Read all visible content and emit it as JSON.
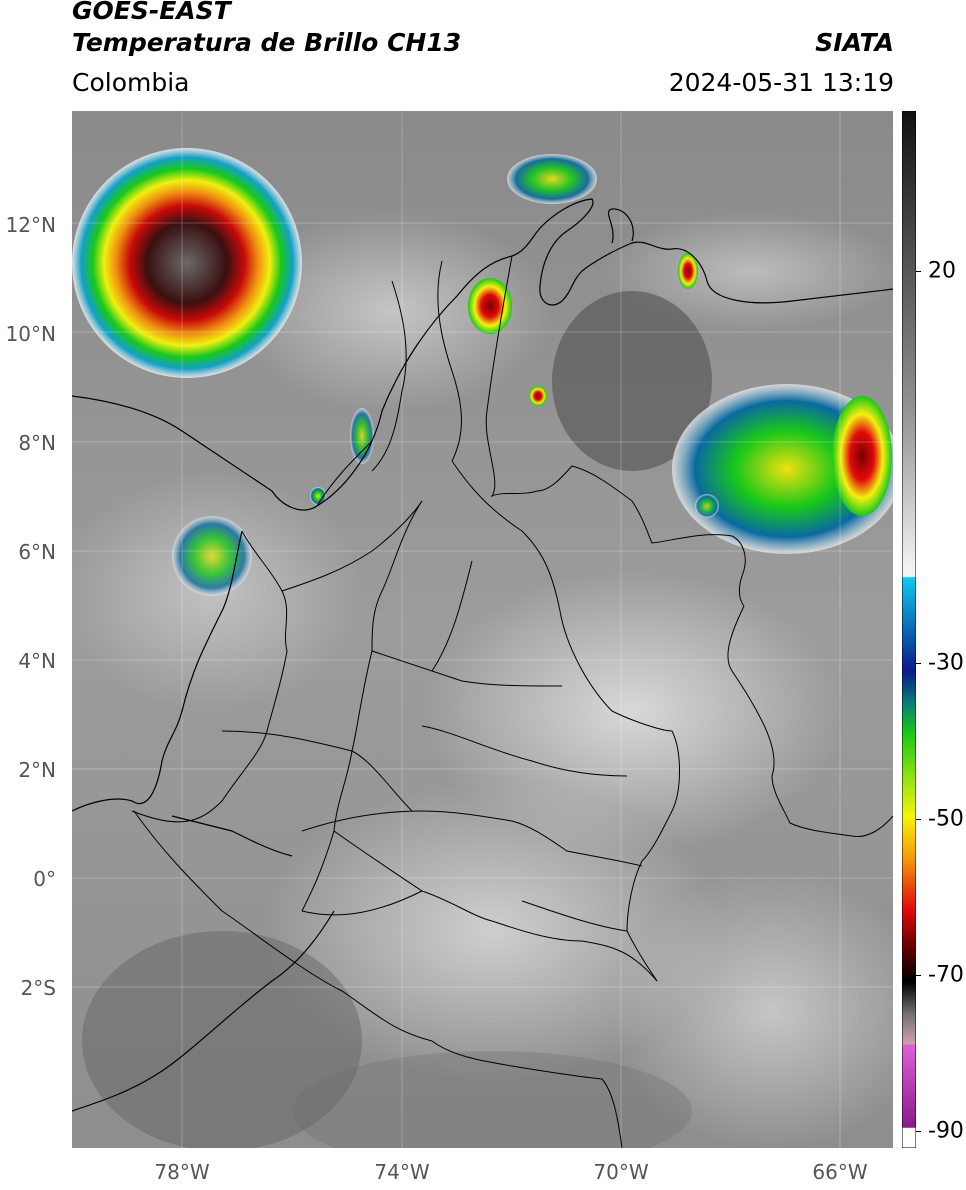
{
  "header": {
    "title_line1": "GOES-EAST",
    "title_line2": "Temperatura de Brillo CH13",
    "organization": "SIATA",
    "region": "Colombia",
    "timestamp": "2024-05-31 13:19"
  },
  "map": {
    "lat_labels": [
      "12°N",
      "10°N",
      "8°N",
      "6°N",
      "4°N",
      "2°N",
      "0°",
      "2°S"
    ],
    "lon_labels": [
      "78°W",
      "74°W",
      "70°W",
      "66°W"
    ],
    "extent": {
      "lon_min": -80,
      "lon_max": -65,
      "lat_min": -5,
      "lat_max": 14
    }
  },
  "colorbar": {
    "tick_labels": [
      "20",
      "-30",
      "-50",
      "-70",
      "-90"
    ],
    "range": [
      -92,
      39
    ],
    "colors": {
      "warm_gray": "#2b2b2b",
      "cold_gray": "#f0f0f0",
      "cyan": "#12c8f0",
      "dark_blue": "#0a2a8c",
      "green": "#19c819",
      "yellow": "#f5f50a",
      "orange": "#f59a0a",
      "red": "#e10a0a",
      "dark_red": "#5a0000",
      "black": "#000000",
      "magenta": "#e060d8",
      "purple": "#8a1a8a"
    }
  }
}
